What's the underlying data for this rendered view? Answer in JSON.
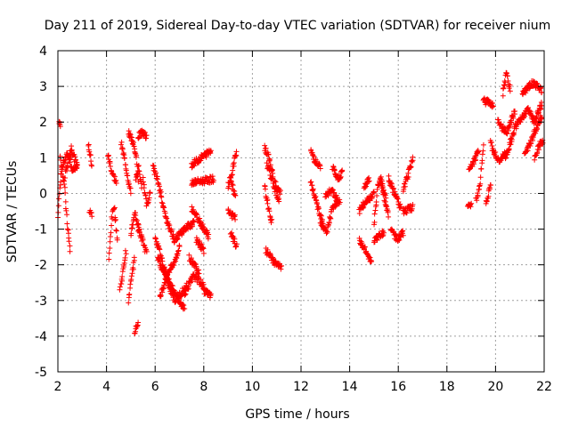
{
  "chart_data": {
    "type": "scatter",
    "title": "Day 211 of 2019, Sidereal Day-to-day VTEC variation (SDTVAR) for receiver nium",
    "xlabel": "GPS time / hours",
    "ylabel": "SDTVAR / TECUs",
    "xlim": [
      2,
      22
    ],
    "ylim": [
      -5,
      4
    ],
    "xticks": [
      2,
      4,
      6,
      8,
      10,
      12,
      14,
      16,
      18,
      20,
      22
    ],
    "yticks": [
      -5,
      -4,
      -3,
      -2,
      -1,
      0,
      1,
      2,
      3,
      4
    ],
    "xtick_labels": [
      "2",
      "4",
      "6",
      "8",
      "10",
      "12",
      "14",
      "16",
      "18",
      "20",
      "22"
    ],
    "ytick_labels": [
      "-5",
      "-4",
      "-3",
      "-2",
      "-1",
      "0",
      "1",
      "2",
      "3",
      "4"
    ],
    "grid": true,
    "marker": "+",
    "color": "#ff0000",
    "segments": [
      {
        "t0": 2.0,
        "t1": 2.8,
        "p": [
          [
            0,
            -0.6
          ],
          [
            0.2,
            0.7
          ],
          [
            0.5,
            1.1
          ],
          [
            0.8,
            0.6
          ],
          [
            1,
            0.9
          ]
        ]
      },
      {
        "t0": 2.1,
        "t1": 2.5,
        "p": [
          [
            0,
            1.0
          ],
          [
            0.4,
            0.3
          ],
          [
            0.7,
            -0.8
          ],
          [
            1,
            -1.6
          ]
        ]
      },
      {
        "t0": 2.05,
        "t1": 2.1,
        "p": [
          [
            0,
            2.0
          ],
          [
            1,
            1.9
          ]
        ]
      },
      {
        "t0": 2.3,
        "t1": 2.8,
        "p": [
          [
            0,
            0.5
          ],
          [
            0.5,
            1.3
          ],
          [
            1,
            0.7
          ]
        ]
      },
      {
        "t0": 3.25,
        "t1": 3.4,
        "p": [
          [
            0,
            1.4
          ],
          [
            0.5,
            1.1
          ],
          [
            1,
            0.8
          ]
        ]
      },
      {
        "t0": 3.3,
        "t1": 3.4,
        "p": [
          [
            0,
            -0.5
          ],
          [
            1,
            -0.6
          ]
        ]
      },
      {
        "t0": 4.05,
        "t1": 4.4,
        "p": [
          [
            0,
            1.1
          ],
          [
            0.5,
            0.6
          ],
          [
            1,
            0.3
          ]
        ]
      },
      {
        "t0": 4.1,
        "t1": 4.45,
        "p": [
          [
            0,
            -1.9
          ],
          [
            0.3,
            -0.8
          ],
          [
            0.6,
            -0.3
          ],
          [
            1,
            -1.3
          ]
        ]
      },
      {
        "t0": 4.55,
        "t1": 4.8,
        "p": [
          [
            0,
            -2.7
          ],
          [
            0.5,
            -2.2
          ],
          [
            1,
            -1.6
          ]
        ]
      },
      {
        "t0": 4.6,
        "t1": 5.0,
        "p": [
          [
            0,
            1.4
          ],
          [
            0.4,
            0.9
          ],
          [
            0.8,
            0.3
          ],
          [
            1,
            0.0
          ]
        ]
      },
      {
        "t0": 4.9,
        "t1": 5.15,
        "p": [
          [
            0,
            -3.0
          ],
          [
            0.5,
            -2.4
          ],
          [
            1,
            -1.8
          ]
        ]
      },
      {
        "t0": 4.9,
        "t1": 5.3,
        "p": [
          [
            0,
            1.7
          ],
          [
            0.4,
            1.5
          ],
          [
            0.8,
            1.1
          ],
          [
            1,
            0.4
          ]
        ]
      },
      {
        "t0": 5.0,
        "t1": 5.35,
        "p": [
          [
            0,
            -1.1
          ],
          [
            0.5,
            -0.6
          ],
          [
            1,
            -1.0
          ]
        ]
      },
      {
        "t0": 5.15,
        "t1": 5.3,
        "p": [
          [
            0,
            -3.9
          ],
          [
            1,
            -3.6
          ]
        ]
      },
      {
        "t0": 5.2,
        "t1": 5.45,
        "p": [
          [
            0,
            0.3
          ],
          [
            0.4,
            0.8
          ],
          [
            1,
            0.2
          ]
        ]
      },
      {
        "t0": 5.3,
        "t1": 5.65,
        "p": [
          [
            0,
            1.6
          ],
          [
            0.5,
            1.7
          ],
          [
            1,
            1.6
          ]
        ]
      },
      {
        "t0": 5.3,
        "t1": 5.65,
        "p": [
          [
            0,
            -1.0
          ],
          [
            0.5,
            -1.3
          ],
          [
            1,
            -1.7
          ]
        ]
      },
      {
        "t0": 5.5,
        "t1": 5.8,
        "p": [
          [
            0,
            0.4
          ],
          [
            0.5,
            -0.3
          ],
          [
            1,
            0.0
          ]
        ]
      },
      {
        "t0": 5.9,
        "t1": 6.8,
        "p": [
          [
            0,
            0.8
          ],
          [
            0.3,
            0.2
          ],
          [
            0.6,
            -0.7
          ],
          [
            1,
            -1.3
          ]
        ]
      },
      {
        "t0": 6.0,
        "t1": 6.6,
        "p": [
          [
            0,
            -1.2
          ],
          [
            0.5,
            -1.9
          ],
          [
            1,
            -2.6
          ]
        ]
      },
      {
        "t0": 6.1,
        "t1": 7.3,
        "p": [
          [
            0,
            -1.8
          ],
          [
            0.3,
            -2.4
          ],
          [
            0.6,
            -3.0
          ],
          [
            1,
            -2.6
          ]
        ]
      },
      {
        "t0": 6.2,
        "t1": 7.0,
        "p": [
          [
            0,
            -2.9
          ],
          [
            0.4,
            -2.2
          ],
          [
            0.7,
            -2.0
          ],
          [
            1,
            -1.5
          ]
        ]
      },
      {
        "t0": 6.4,
        "t1": 7.2,
        "p": [
          [
            0,
            -2.2
          ],
          [
            0.5,
            -2.8
          ],
          [
            1,
            -3.2
          ]
        ]
      },
      {
        "t0": 6.8,
        "t1": 7.6,
        "p": [
          [
            0,
            -1.3
          ],
          [
            0.5,
            -1.0
          ],
          [
            1,
            -0.8
          ]
        ]
      },
      {
        "t0": 7.2,
        "t1": 8.0,
        "p": [
          [
            0,
            -2.8
          ],
          [
            0.5,
            -2.3
          ],
          [
            1,
            -2.6
          ]
        ]
      },
      {
        "t0": 7.4,
        "t1": 7.8,
        "p": [
          [
            0,
            -1.8
          ],
          [
            1,
            -2.2
          ]
        ]
      },
      {
        "t0": 7.5,
        "t1": 8.3,
        "p": [
          [
            0,
            0.8
          ],
          [
            0.5,
            1.0
          ],
          [
            1,
            1.2
          ]
        ]
      },
      {
        "t0": 7.5,
        "t1": 8.2,
        "p": [
          [
            0,
            -0.4
          ],
          [
            0.5,
            -0.8
          ],
          [
            1,
            -1.2
          ]
        ]
      },
      {
        "t0": 7.5,
        "t1": 8.4,
        "p": [
          [
            0,
            0.3
          ],
          [
            1,
            0.4
          ]
        ]
      },
      {
        "t0": 7.7,
        "t1": 8.0,
        "p": [
          [
            0,
            -1.3
          ],
          [
            1,
            -1.6
          ]
        ]
      },
      {
        "t0": 8.0,
        "t1": 8.3,
        "p": [
          [
            0,
            -2.7
          ],
          [
            1,
            -2.9
          ]
        ]
      },
      {
        "t0": 9.0,
        "t1": 9.35,
        "p": [
          [
            0,
            0.2
          ],
          [
            0.5,
            0.6
          ],
          [
            1,
            1.2
          ]
        ]
      },
      {
        "t0": 9.0,
        "t1": 9.3,
        "p": [
          [
            0,
            -0.5
          ],
          [
            1,
            -0.7
          ]
        ]
      },
      {
        "t0": 9.1,
        "t1": 9.35,
        "p": [
          [
            0,
            -1.1
          ],
          [
            1,
            -1.5
          ]
        ]
      },
      {
        "t0": 9.1,
        "t1": 9.3,
        "p": [
          [
            0,
            0.4
          ],
          [
            1,
            -0.1
          ]
        ]
      },
      {
        "t0": 10.5,
        "t1": 10.85,
        "p": [
          [
            0,
            1.3
          ],
          [
            0.5,
            1.0
          ],
          [
            1,
            0.5
          ]
        ]
      },
      {
        "t0": 10.5,
        "t1": 10.8,
        "p": [
          [
            0,
            0.2
          ],
          [
            0.5,
            -0.4
          ],
          [
            1,
            -0.8
          ]
        ]
      },
      {
        "t0": 10.55,
        "t1": 11.2,
        "p": [
          [
            0,
            -1.6
          ],
          [
            0.5,
            -1.9
          ],
          [
            1,
            -2.1
          ]
        ]
      },
      {
        "t0": 10.6,
        "t1": 11.1,
        "p": [
          [
            0,
            0.8
          ],
          [
            0.5,
            0.3
          ],
          [
            1,
            -0.2
          ]
        ]
      },
      {
        "t0": 10.9,
        "t1": 11.15,
        "p": [
          [
            0,
            0.3
          ],
          [
            1,
            0.0
          ]
        ]
      },
      {
        "t0": 12.4,
        "t1": 12.8,
        "p": [
          [
            0,
            1.2
          ],
          [
            0.5,
            0.9
          ],
          [
            1,
            0.7
          ]
        ]
      },
      {
        "t0": 12.4,
        "t1": 12.9,
        "p": [
          [
            0,
            0.3
          ],
          [
            0.5,
            -0.3
          ],
          [
            1,
            -0.8
          ]
        ]
      },
      {
        "t0": 12.8,
        "t1": 13.3,
        "p": [
          [
            0,
            -0.8
          ],
          [
            0.5,
            -1.1
          ],
          [
            1,
            -0.4
          ]
        ]
      },
      {
        "t0": 13.0,
        "t1": 13.5,
        "p": [
          [
            0,
            -0.1
          ],
          [
            0.5,
            0.1
          ],
          [
            1,
            -0.2
          ]
        ]
      },
      {
        "t0": 13.3,
        "t1": 13.7,
        "p": [
          [
            0,
            0.7
          ],
          [
            0.5,
            0.4
          ],
          [
            1,
            0.6
          ]
        ]
      },
      {
        "t0": 13.3,
        "t1": 13.6,
        "p": [
          [
            0,
            -0.4
          ],
          [
            1,
            -0.2
          ]
        ]
      },
      {
        "t0": 14.4,
        "t1": 14.9,
        "p": [
          [
            0,
            -1.3
          ],
          [
            0.5,
            -1.6
          ],
          [
            1,
            -1.9
          ]
        ]
      },
      {
        "t0": 14.4,
        "t1": 15.0,
        "p": [
          [
            0,
            -0.5
          ],
          [
            0.5,
            -0.2
          ],
          [
            1,
            0.0
          ]
        ]
      },
      {
        "t0": 14.6,
        "t1": 14.8,
        "p": [
          [
            0,
            0.2
          ],
          [
            1,
            0.4
          ]
        ]
      },
      {
        "t0": 15.0,
        "t1": 15.5,
        "p": [
          [
            0,
            -0.9
          ],
          [
            0.3,
            0.2
          ],
          [
            0.6,
            0.4
          ],
          [
            1,
            -0.2
          ]
        ]
      },
      {
        "t0": 15.0,
        "t1": 15.4,
        "p": [
          [
            0,
            -1.3
          ],
          [
            1,
            -1.1
          ]
        ]
      },
      {
        "t0": 15.3,
        "t1": 15.6,
        "p": [
          [
            0,
            0.3
          ],
          [
            0.5,
            -0.2
          ],
          [
            1,
            -0.6
          ]
        ]
      },
      {
        "t0": 15.6,
        "t1": 16.1,
        "p": [
          [
            0,
            0.4
          ],
          [
            0.5,
            0.0
          ],
          [
            1,
            -0.4
          ]
        ]
      },
      {
        "t0": 15.7,
        "t1": 16.2,
        "p": [
          [
            0,
            -1.0
          ],
          [
            0.5,
            -1.3
          ],
          [
            1,
            -1.1
          ]
        ]
      },
      {
        "t0": 16.2,
        "t1": 16.6,
        "p": [
          [
            0,
            -0.5
          ],
          [
            1,
            -0.4
          ]
        ]
      },
      {
        "t0": 16.2,
        "t1": 16.6,
        "p": [
          [
            0,
            0.1
          ],
          [
            0.5,
            0.5
          ],
          [
            1,
            1.0
          ]
        ]
      },
      {
        "t0": 18.85,
        "t1": 19.0,
        "p": [
          [
            0,
            -0.4
          ],
          [
            1,
            -0.3
          ]
        ]
      },
      {
        "t0": 18.9,
        "t1": 19.3,
        "p": [
          [
            0,
            0.7
          ],
          [
            0.5,
            0.9
          ],
          [
            1,
            1.2
          ]
        ]
      },
      {
        "t0": 19.2,
        "t1": 19.5,
        "p": [
          [
            0,
            -0.2
          ],
          [
            0.5,
            0.2
          ],
          [
            1,
            1.4
          ]
        ]
      },
      {
        "t0": 19.5,
        "t1": 19.9,
        "p": [
          [
            0,
            2.6
          ],
          [
            1,
            2.5
          ]
        ]
      },
      {
        "t0": 19.6,
        "t1": 19.8,
        "p": [
          [
            0,
            -0.3
          ],
          [
            1,
            0.3
          ]
        ]
      },
      {
        "t0": 19.8,
        "t1": 20.4,
        "p": [
          [
            0,
            1.4
          ],
          [
            0.5,
            0.9
          ],
          [
            1,
            1.1
          ]
        ]
      },
      {
        "t0": 20.1,
        "t1": 20.8,
        "p": [
          [
            0,
            2.0
          ],
          [
            0.5,
            1.7
          ],
          [
            1,
            2.3
          ]
        ]
      },
      {
        "t0": 20.3,
        "t1": 20.6,
        "p": [
          [
            0,
            2.8
          ],
          [
            0.5,
            3.4
          ],
          [
            1,
            2.9
          ]
        ]
      },
      {
        "t0": 20.4,
        "t1": 21.3,
        "p": [
          [
            0,
            1.0
          ],
          [
            0.5,
            1.9
          ],
          [
            1,
            2.3
          ]
        ]
      },
      {
        "t0": 21.1,
        "t1": 21.9,
        "p": [
          [
            0,
            2.8
          ],
          [
            0.5,
            3.1
          ],
          [
            1,
            2.9
          ]
        ]
      },
      {
        "t0": 21.2,
        "t1": 21.9,
        "p": [
          [
            0,
            1.1
          ],
          [
            0.5,
            1.6
          ],
          [
            1,
            2.2
          ]
        ]
      },
      {
        "t0": 21.3,
        "t1": 21.9,
        "p": [
          [
            0,
            2.4
          ],
          [
            0.5,
            2.0
          ],
          [
            1,
            2.5
          ]
        ]
      },
      {
        "t0": 21.6,
        "t1": 21.95,
        "p": [
          [
            0,
            1.0
          ],
          [
            0.5,
            1.3
          ],
          [
            1,
            1.5
          ]
        ]
      }
    ]
  }
}
